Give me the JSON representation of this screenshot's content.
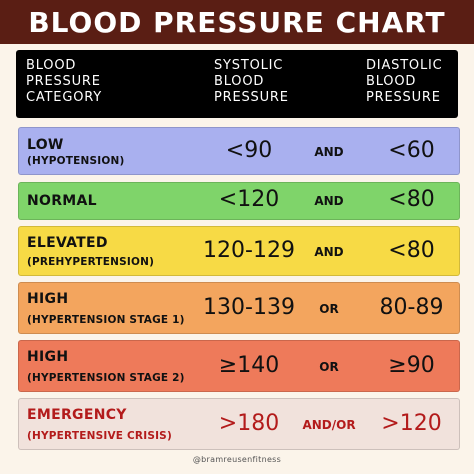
{
  "title": "BLOOD PRESSURE CHART",
  "header": {
    "category": "BLOOD\nPRESSURE\nCATEGORY",
    "systolic": "SYSTOLIC\nBLOOD\nPRESSURE",
    "diastolic": "DIASTOLIC\nBLOOD\nPRESSURE"
  },
  "rows": [
    {
      "category": "LOW",
      "subtitle": "(HYPOTENSION)",
      "systolic": "<90",
      "conjunction": "AND",
      "diastolic": "<60",
      "color": "#a9b0ef",
      "text_color": "#111111"
    },
    {
      "category": "NORMAL",
      "subtitle": "",
      "systolic": "<120",
      "conjunction": "AND",
      "diastolic": "<80",
      "color": "#7fd46a",
      "text_color": "#111111"
    },
    {
      "category": "ELEVATED",
      "subtitle": "(PREHYPERTENSION)",
      "systolic": "120-129",
      "conjunction": "AND",
      "diastolic": "<80",
      "color": "#f7da45",
      "text_color": "#111111"
    },
    {
      "category": "HIGH",
      "subtitle": "(HYPERTENSION STAGE 1)",
      "systolic": "130-139",
      "conjunction": "OR",
      "diastolic": "80-89",
      "color": "#f3a55e",
      "text_color": "#111111"
    },
    {
      "category": "HIGH",
      "subtitle": "(HYPERTENSION STAGE 2)",
      "systolic": "≥140",
      "conjunction": "OR",
      "diastolic": "≥90",
      "color": "#ee7a5a",
      "text_color": "#111111"
    },
    {
      "category": "EMERGENCY",
      "subtitle": "(HYPERTENSIVE CRISIS)",
      "systolic": ">180",
      "conjunction": "AND/OR",
      "diastolic": ">120",
      "color": "#f1e2dc",
      "text_color": "#b31b1b"
    }
  ],
  "footer": "@bramreusenfitness"
}
